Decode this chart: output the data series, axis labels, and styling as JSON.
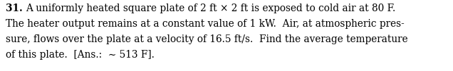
{
  "number": "31.",
  "line1": "  A uniformly heated square plate of 2 ft × 2 ft is exposed to cold air at 80 F.",
  "line2": "The heater output remains at a constant value of 1 kW.  Air, at atmospheric pres-",
  "line3": "sure, flows over the plate at a velocity of 16.5 ft/s.  Find the average temperature",
  "line4": "of this plate.  [Ans.:  ∼ 513 F].",
  "font_size": 9.8,
  "bg_color": "#ffffff",
  "text_color": "#000000"
}
